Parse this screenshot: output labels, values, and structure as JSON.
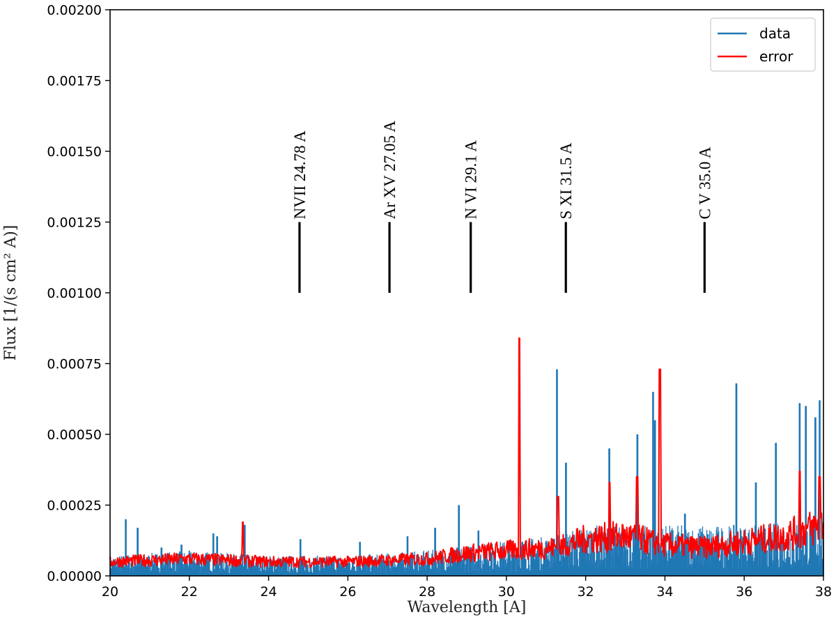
{
  "chart_data": {
    "type": "line",
    "title": "",
    "xlabel": "Wavelength [A]",
    "ylabel": "Flux [1/(s cm² A)]",
    "xlim": [
      20,
      38
    ],
    "ylim": [
      0,
      0.002
    ],
    "x_ticks": [
      20,
      22,
      24,
      26,
      28,
      30,
      32,
      34,
      36,
      38
    ],
    "x_tick_labels": [
      "20",
      "22",
      "24",
      "26",
      "28",
      "30",
      "32",
      "34",
      "36",
      "38"
    ],
    "y_ticks": [
      0,
      0.00025,
      0.0005,
      0.00075,
      0.001,
      0.00125,
      0.0015,
      0.00175,
      0.002
    ],
    "y_tick_labels": [
      "0.00000",
      "0.00025",
      "0.00050",
      "0.00075",
      "0.00100",
      "0.00125",
      "0.00150",
      "0.00175",
      "0.00200"
    ],
    "legend": {
      "position": "top-right",
      "entries": [
        {
          "name": "data",
          "color": "#1f77b4"
        },
        {
          "name": "error",
          "color": "#ff0000"
        }
      ]
    },
    "series": [
      {
        "name": "data",
        "color": "#1f77b4",
        "baseline": [
          [
            20,
            4e-05
          ],
          [
            22,
            5e-05
          ],
          [
            24,
            4e-05
          ],
          [
            26,
            4e-05
          ],
          [
            28,
            5e-05
          ],
          [
            30,
            7e-05
          ],
          [
            31.2,
            8e-05
          ],
          [
            32,
            0.0001
          ],
          [
            34,
            0.0001
          ],
          [
            36,
            0.0001
          ],
          [
            38,
            0.00011
          ]
        ],
        "peaks": [
          [
            20.4,
            0.0002
          ],
          [
            20.7,
            0.00017
          ],
          [
            21.3,
            0.0001
          ],
          [
            21.8,
            0.00011
          ],
          [
            22.6,
            0.00015
          ],
          [
            22.7,
            0.00014
          ],
          [
            23.4,
            0.00018
          ],
          [
            24.8,
            0.00013
          ],
          [
            26.3,
            0.00012
          ],
          [
            27.5,
            0.00014
          ],
          [
            28.2,
            0.00017
          ],
          [
            28.8,
            0.00025
          ],
          [
            29.3,
            0.00016
          ],
          [
            30.4,
            0.00012
          ],
          [
            31.28,
            0.00073
          ],
          [
            31.5,
            0.0004
          ],
          [
            32.6,
            0.00045
          ],
          [
            33.3,
            0.0005
          ],
          [
            33.7,
            0.00065
          ],
          [
            33.75,
            0.00055
          ],
          [
            34.5,
            0.00022
          ],
          [
            35.8,
            0.00068
          ],
          [
            36.3,
            0.00033
          ],
          [
            36.8,
            0.00047
          ],
          [
            37.4,
            0.00061
          ],
          [
            37.55,
            0.0006
          ],
          [
            37.8,
            0.00056
          ],
          [
            37.9,
            0.00062
          ]
        ]
      },
      {
        "name": "error",
        "color": "#ff0000",
        "baseline": [
          [
            20,
            5e-05
          ],
          [
            22,
            6e-05
          ],
          [
            24,
            5e-05
          ],
          [
            26,
            5e-05
          ],
          [
            28,
            6e-05
          ],
          [
            29,
            8e-05
          ],
          [
            30,
            9e-05
          ],
          [
            31.3,
            0.0001
          ],
          [
            32,
            0.00013
          ],
          [
            33,
            0.00014
          ],
          [
            34,
            0.00011
          ],
          [
            35,
            0.0001
          ],
          [
            36,
            0.00012
          ],
          [
            37,
            0.00014
          ],
          [
            38,
            0.00018
          ]
        ],
        "peaks": [
          [
            23.35,
            0.00019
          ],
          [
            30.33,
            0.00084
          ],
          [
            31.3,
            0.00028
          ],
          [
            32.6,
            0.00033
          ],
          [
            33.3,
            0.00035
          ],
          [
            33.87,
            0.00073
          ],
          [
            37.4,
            0.00037
          ],
          [
            37.9,
            0.00035
          ]
        ]
      }
    ],
    "annotations": [
      {
        "label": "NVII 24.78 A",
        "x": 24.78,
        "y_start": 0.001,
        "y_end": 0.00125
      },
      {
        "label": "Ar XV 27.05 A",
        "x": 27.05,
        "y_start": 0.001,
        "y_end": 0.00125
      },
      {
        "label": "N VI 29.1 A",
        "x": 29.1,
        "y_start": 0.001,
        "y_end": 0.00125
      },
      {
        "label": "S XI 31.5 A",
        "x": 31.5,
        "y_start": 0.001,
        "y_end": 0.00125
      },
      {
        "label": "C V 35.0 A",
        "x": 35.0,
        "y_start": 0.001,
        "y_end": 0.00125
      }
    ]
  }
}
